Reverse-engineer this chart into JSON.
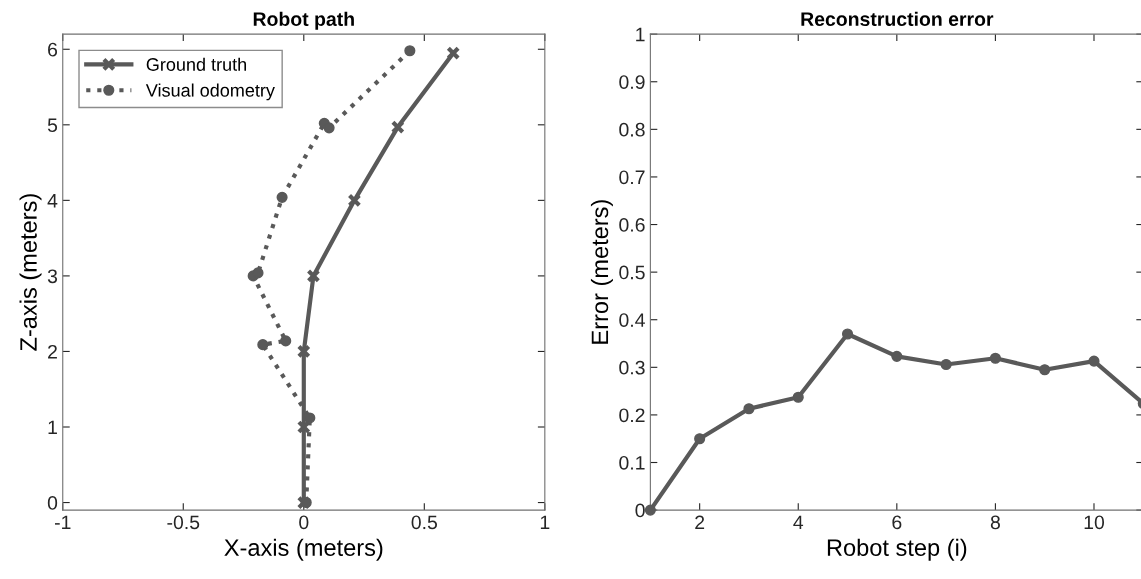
{
  "chart_data": [
    {
      "type": "line",
      "title": "Robot path",
      "xlabel": "X-axis (meters)",
      "ylabel": "Z-axis (meters)",
      "xlim": [
        -1,
        1
      ],
      "xticks": [
        -1,
        -0.5,
        0,
        0.5,
        1
      ],
      "ylim": [
        -0.1,
        6.2
      ],
      "yticks": [
        0,
        1,
        2,
        3,
        4,
        5,
        6
      ],
      "legend": "top left",
      "grid": false,
      "series": [
        {
          "name": "Ground truth",
          "color": "#595959",
          "marker": "cross",
          "line_style": "solid",
          "x": [
            0,
            0,
            0,
            0.04,
            0.21,
            0.39,
            0.62
          ],
          "values": [
            0,
            1,
            2,
            3,
            4.0,
            4.97,
            5.95
          ]
        },
        {
          "name": "Visual odometry",
          "color": "#595959",
          "marker": "circle",
          "line_style": "dotted",
          "x": [
            0.01,
            0.025,
            -0.17,
            -0.075,
            -0.21,
            -0.19,
            -0.09,
            0.085,
            0.105,
            0.44
          ],
          "values": [
            0,
            1.12,
            2.09,
            2.14,
            3.0,
            3.04,
            4.04,
            5.02,
            4.96,
            5.98
          ]
        }
      ]
    },
    {
      "type": "line",
      "title": "Reconstruction error",
      "xlabel": "Robot step (i)",
      "ylabel": "Error (meters)",
      "xlim": [
        1,
        11
      ],
      "xticks": [
        2,
        4,
        6,
        8,
        10
      ],
      "ylim": [
        0,
        1
      ],
      "yticks": [
        0,
        0.1,
        0.2,
        0.3,
        0.4,
        0.5,
        0.6,
        0.7,
        0.8,
        0.9,
        1
      ],
      "grid": false,
      "series": [
        {
          "color": "#595959",
          "marker": "circle",
          "line_style": "solid",
          "x": [
            1,
            2,
            3,
            4,
            5,
            6,
            7,
            8,
            9,
            10,
            11
          ],
          "values": [
            0,
            0.15,
            0.213,
            0.237,
            0.37,
            0.323,
            0.306,
            0.319,
            0.295,
            0.313,
            0.224
          ]
        }
      ]
    }
  ]
}
